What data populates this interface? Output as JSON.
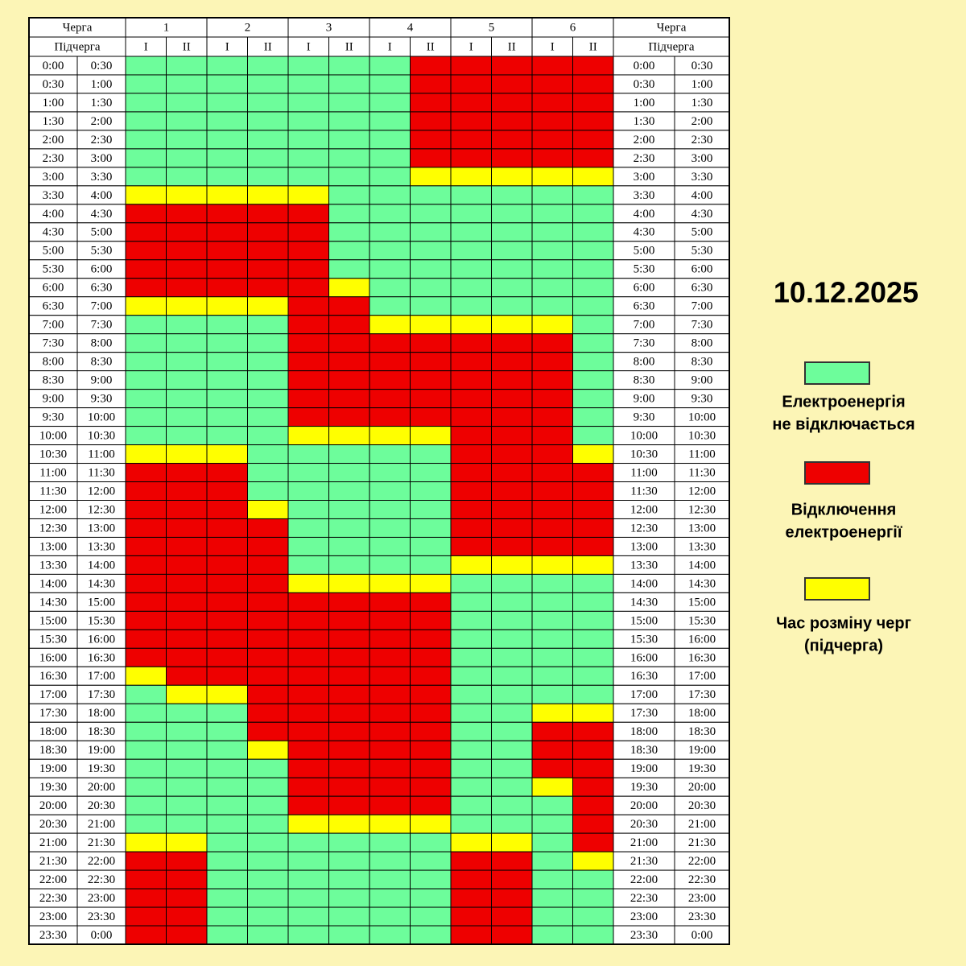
{
  "header": {
    "queue": "Черга",
    "subqueue": "Підчерга",
    "queues": [
      {
        "label": "1",
        "sub": [
          "I",
          "II"
        ]
      },
      {
        "label": "2",
        "sub": [
          "I",
          "II"
        ]
      },
      {
        "label": "3",
        "sub": [
          "I",
          "II"
        ]
      },
      {
        "label": "4",
        "sub": [
          "I",
          "II"
        ]
      },
      {
        "label": "5",
        "sub": [
          "I",
          "II"
        ]
      },
      {
        "label": "6",
        "sub": [
          "I",
          "II"
        ]
      }
    ]
  },
  "date": "10.12.2025",
  "legend": {
    "items": [
      {
        "color": "#6dfd9b",
        "lines": [
          "Електроенергія",
          "не відключається"
        ]
      },
      {
        "color": "#ee0000",
        "lines": [
          "Відключення",
          "електроенергії"
        ]
      },
      {
        "color": "#ffff00",
        "lines": [
          "Час розміну черг",
          "(підчерга)"
        ]
      }
    ]
  },
  "table": {
    "rows": [
      {
        "time": [
          "0:00",
          "0:30"
        ],
        "cells": [
          0,
          0,
          0,
          0,
          0,
          0,
          0,
          1,
          1,
          1,
          1,
          1
        ]
      },
      {
        "time": [
          "0:30",
          "1:00"
        ],
        "cells": [
          0,
          0,
          0,
          0,
          0,
          0,
          0,
          1,
          1,
          1,
          1,
          1
        ]
      },
      {
        "time": [
          "1:00",
          "1:30"
        ],
        "cells": [
          0,
          0,
          0,
          0,
          0,
          0,
          0,
          1,
          1,
          1,
          1,
          1
        ]
      },
      {
        "time": [
          "1:30",
          "2:00"
        ],
        "cells": [
          0,
          0,
          0,
          0,
          0,
          0,
          0,
          1,
          1,
          1,
          1,
          1
        ]
      },
      {
        "time": [
          "2:00",
          "2:30"
        ],
        "cells": [
          0,
          0,
          0,
          0,
          0,
          0,
          0,
          1,
          1,
          1,
          1,
          1
        ]
      },
      {
        "time": [
          "2:30",
          "3:00"
        ],
        "cells": [
          0,
          0,
          0,
          0,
          0,
          0,
          0,
          1,
          1,
          1,
          1,
          1
        ]
      },
      {
        "time": [
          "3:00",
          "3:30"
        ],
        "cells": [
          0,
          0,
          0,
          0,
          0,
          0,
          0,
          2,
          2,
          2,
          2,
          2
        ]
      },
      {
        "time": [
          "3:30",
          "4:00"
        ],
        "cells": [
          2,
          2,
          2,
          2,
          2,
          0,
          0,
          0,
          0,
          0,
          0,
          0
        ]
      },
      {
        "time": [
          "4:00",
          "4:30"
        ],
        "cells": [
          1,
          1,
          1,
          1,
          1,
          0,
          0,
          0,
          0,
          0,
          0,
          0
        ]
      },
      {
        "time": [
          "4:30",
          "5:00"
        ],
        "cells": [
          1,
          1,
          1,
          1,
          1,
          0,
          0,
          0,
          0,
          0,
          0,
          0
        ]
      },
      {
        "time": [
          "5:00",
          "5:30"
        ],
        "cells": [
          1,
          1,
          1,
          1,
          1,
          0,
          0,
          0,
          0,
          0,
          0,
          0
        ]
      },
      {
        "time": [
          "5:30",
          "6:00"
        ],
        "cells": [
          1,
          1,
          1,
          1,
          1,
          0,
          0,
          0,
          0,
          0,
          0,
          0
        ]
      },
      {
        "time": [
          "6:00",
          "6:30"
        ],
        "cells": [
          1,
          1,
          1,
          1,
          1,
          2,
          0,
          0,
          0,
          0,
          0,
          0
        ]
      },
      {
        "time": [
          "6:30",
          "7:00"
        ],
        "cells": [
          2,
          2,
          2,
          2,
          1,
          1,
          0,
          0,
          0,
          0,
          0,
          0
        ]
      },
      {
        "time": [
          "7:00",
          "7:30"
        ],
        "cells": [
          0,
          0,
          0,
          0,
          1,
          1,
          2,
          2,
          2,
          2,
          2,
          0
        ]
      },
      {
        "time": [
          "7:30",
          "8:00"
        ],
        "cells": [
          0,
          0,
          0,
          0,
          1,
          1,
          1,
          1,
          1,
          1,
          1,
          0
        ]
      },
      {
        "time": [
          "8:00",
          "8:30"
        ],
        "cells": [
          0,
          0,
          0,
          0,
          1,
          1,
          1,
          1,
          1,
          1,
          1,
          0
        ]
      },
      {
        "time": [
          "8:30",
          "9:00"
        ],
        "cells": [
          0,
          0,
          0,
          0,
          1,
          1,
          1,
          1,
          1,
          1,
          1,
          0
        ]
      },
      {
        "time": [
          "9:00",
          "9:30"
        ],
        "cells": [
          0,
          0,
          0,
          0,
          1,
          1,
          1,
          1,
          1,
          1,
          1,
          0
        ]
      },
      {
        "time": [
          "9:30",
          "10:00"
        ],
        "cells": [
          0,
          0,
          0,
          0,
          1,
          1,
          1,
          1,
          1,
          1,
          1,
          0
        ]
      },
      {
        "time": [
          "10:00",
          "10:30"
        ],
        "cells": [
          0,
          0,
          0,
          0,
          2,
          2,
          2,
          2,
          1,
          1,
          1,
          0
        ]
      },
      {
        "time": [
          "10:30",
          "11:00"
        ],
        "cells": [
          2,
          2,
          2,
          0,
          0,
          0,
          0,
          0,
          1,
          1,
          1,
          2
        ]
      },
      {
        "time": [
          "11:00",
          "11:30"
        ],
        "cells": [
          1,
          1,
          1,
          0,
          0,
          0,
          0,
          0,
          1,
          1,
          1,
          1
        ]
      },
      {
        "time": [
          "11:30",
          "12:00"
        ],
        "cells": [
          1,
          1,
          1,
          0,
          0,
          0,
          0,
          0,
          1,
          1,
          1,
          1
        ]
      },
      {
        "time": [
          "12:00",
          "12:30"
        ],
        "cells": [
          1,
          1,
          1,
          2,
          0,
          0,
          0,
          0,
          1,
          1,
          1,
          1
        ]
      },
      {
        "time": [
          "12:30",
          "13:00"
        ],
        "cells": [
          1,
          1,
          1,
          1,
          0,
          0,
          0,
          0,
          1,
          1,
          1,
          1
        ]
      },
      {
        "time": [
          "13:00",
          "13:30"
        ],
        "cells": [
          1,
          1,
          1,
          1,
          0,
          0,
          0,
          0,
          1,
          1,
          1,
          1
        ]
      },
      {
        "time": [
          "13:30",
          "14:00"
        ],
        "cells": [
          1,
          1,
          1,
          1,
          0,
          0,
          0,
          0,
          2,
          2,
          2,
          2
        ]
      },
      {
        "time": [
          "14:00",
          "14:30"
        ],
        "cells": [
          1,
          1,
          1,
          1,
          2,
          2,
          2,
          2,
          0,
          0,
          0,
          0
        ]
      },
      {
        "time": [
          "14:30",
          "15:00"
        ],
        "cells": [
          1,
          1,
          1,
          1,
          1,
          1,
          1,
          1,
          0,
          0,
          0,
          0
        ]
      },
      {
        "time": [
          "15:00",
          "15:30"
        ],
        "cells": [
          1,
          1,
          1,
          1,
          1,
          1,
          1,
          1,
          0,
          0,
          0,
          0
        ]
      },
      {
        "time": [
          "15:30",
          "16:00"
        ],
        "cells": [
          1,
          1,
          1,
          1,
          1,
          1,
          1,
          1,
          0,
          0,
          0,
          0
        ]
      },
      {
        "time": [
          "16:00",
          "16:30"
        ],
        "cells": [
          1,
          1,
          1,
          1,
          1,
          1,
          1,
          1,
          0,
          0,
          0,
          0
        ]
      },
      {
        "time": [
          "16:30",
          "17:00"
        ],
        "cells": [
          2,
          1,
          1,
          1,
          1,
          1,
          1,
          1,
          0,
          0,
          0,
          0
        ]
      },
      {
        "time": [
          "17:00",
          "17:30"
        ],
        "cells": [
          0,
          2,
          2,
          1,
          1,
          1,
          1,
          1,
          0,
          0,
          0,
          0
        ]
      },
      {
        "time": [
          "17:30",
          "18:00"
        ],
        "cells": [
          0,
          0,
          0,
          1,
          1,
          1,
          1,
          1,
          0,
          0,
          2,
          2
        ]
      },
      {
        "time": [
          "18:00",
          "18:30"
        ],
        "cells": [
          0,
          0,
          0,
          1,
          1,
          1,
          1,
          1,
          0,
          0,
          1,
          1
        ]
      },
      {
        "time": [
          "18:30",
          "19:00"
        ],
        "cells": [
          0,
          0,
          0,
          2,
          1,
          1,
          1,
          1,
          0,
          0,
          1,
          1
        ]
      },
      {
        "time": [
          "19:00",
          "19:30"
        ],
        "cells": [
          0,
          0,
          0,
          0,
          1,
          1,
          1,
          1,
          0,
          0,
          1,
          1
        ]
      },
      {
        "time": [
          "19:30",
          "20:00"
        ],
        "cells": [
          0,
          0,
          0,
          0,
          1,
          1,
          1,
          1,
          0,
          0,
          2,
          1
        ]
      },
      {
        "time": [
          "20:00",
          "20:30"
        ],
        "cells": [
          0,
          0,
          0,
          0,
          1,
          1,
          1,
          1,
          0,
          0,
          0,
          1
        ]
      },
      {
        "time": [
          "20:30",
          "21:00"
        ],
        "cells": [
          0,
          0,
          0,
          0,
          2,
          2,
          2,
          2,
          0,
          0,
          0,
          1
        ]
      },
      {
        "time": [
          "21:00",
          "21:30"
        ],
        "cells": [
          2,
          2,
          0,
          0,
          0,
          0,
          0,
          0,
          2,
          2,
          0,
          1
        ]
      },
      {
        "time": [
          "21:30",
          "22:00"
        ],
        "cells": [
          1,
          1,
          0,
          0,
          0,
          0,
          0,
          0,
          1,
          1,
          0,
          2
        ]
      },
      {
        "time": [
          "22:00",
          "22:30"
        ],
        "cells": [
          1,
          1,
          0,
          0,
          0,
          0,
          0,
          0,
          1,
          1,
          0,
          0
        ]
      },
      {
        "time": [
          "22:30",
          "23:00"
        ],
        "cells": [
          1,
          1,
          0,
          0,
          0,
          0,
          0,
          0,
          1,
          1,
          0,
          0
        ]
      },
      {
        "time": [
          "23:00",
          "23:30"
        ],
        "cells": [
          1,
          1,
          0,
          0,
          0,
          0,
          0,
          0,
          1,
          1,
          0,
          0
        ]
      },
      {
        "time": [
          "23:30",
          "0:00"
        ],
        "cells": [
          1,
          1,
          0,
          0,
          0,
          0,
          0,
          0,
          1,
          1,
          0,
          0
        ]
      }
    ]
  }
}
